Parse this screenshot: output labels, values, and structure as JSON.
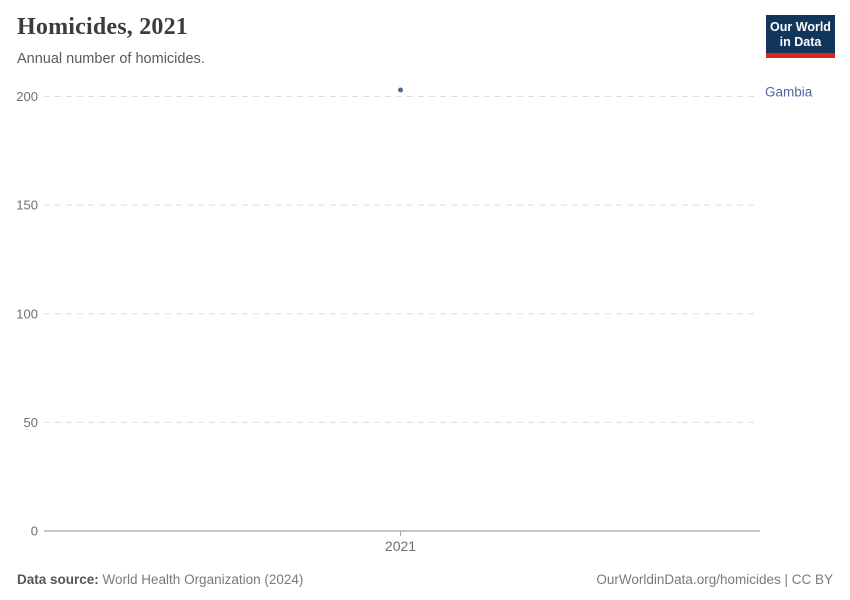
{
  "header": {
    "title": "Homicides, 2021",
    "subtitle": "Annual number of homicides."
  },
  "logo": {
    "line1": "Our World",
    "line2": "in Data",
    "bg_color": "#12355b",
    "accent_color": "#d8281e"
  },
  "footer": {
    "source_label": "Data source:",
    "source_value": " World Health Organization (2024)",
    "license": "OurWorldinData.org/homicides | CC BY"
  },
  "chart_data": {
    "type": "scatter",
    "title": "Homicides, 2021",
    "subtitle": "Annual number of homicides.",
    "xlabel": "",
    "ylabel": "",
    "x": [
      2021
    ],
    "xticks": [
      "2021"
    ],
    "yticks": [
      0,
      50,
      100,
      150,
      200
    ],
    "ylim": [
      0,
      205
    ],
    "grid": "horizontal-dashed",
    "legend_position": "inline-right-of-point",
    "series": [
      {
        "name": "Gambia",
        "values": [
          203
        ],
        "color": "#4c6a9c"
      }
    ],
    "colors": {
      "gridline": "#dedede",
      "axis_line": "#a3a3a3",
      "tick_label": "#6e6e6e"
    }
  }
}
